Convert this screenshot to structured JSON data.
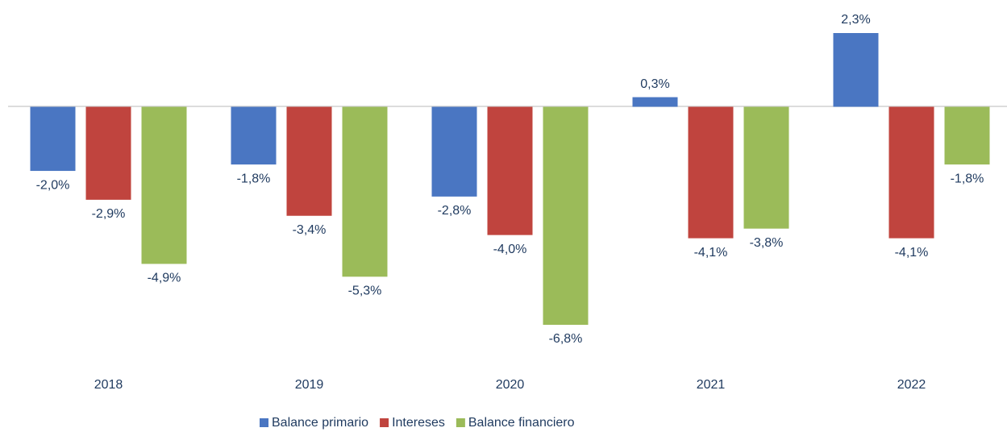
{
  "chart_data": {
    "type": "bar",
    "categories": [
      "2018",
      "2019",
      "2020",
      "2021",
      "2022"
    ],
    "series": [
      {
        "name": "Balance primario",
        "color": "#4a76c2",
        "values": [
          -2.0,
          -1.8,
          -2.8,
          0.3,
          2.3
        ],
        "value_labels": [
          "-2,0%",
          "-1,8%",
          "-2,8%",
          "0,3%",
          "2,3%"
        ]
      },
      {
        "name": "Intereses",
        "color": "#c0443e",
        "values": [
          -2.9,
          -3.4,
          -4.0,
          -4.1,
          -4.1
        ],
        "value_labels": [
          "-2,9%",
          "-3,4%",
          "-4,0%",
          "-4,1%",
          "-4,1%"
        ]
      },
      {
        "name": "Balance financiero",
        "color": "#9bbb59",
        "values": [
          -4.9,
          -5.3,
          -6.8,
          -3.8,
          -1.8
        ],
        "value_labels": [
          "-4,9%",
          "-5,3%",
          "-6,8%",
          "-3,8%",
          "-1,8%"
        ]
      }
    ],
    "legend": "bottom"
  }
}
